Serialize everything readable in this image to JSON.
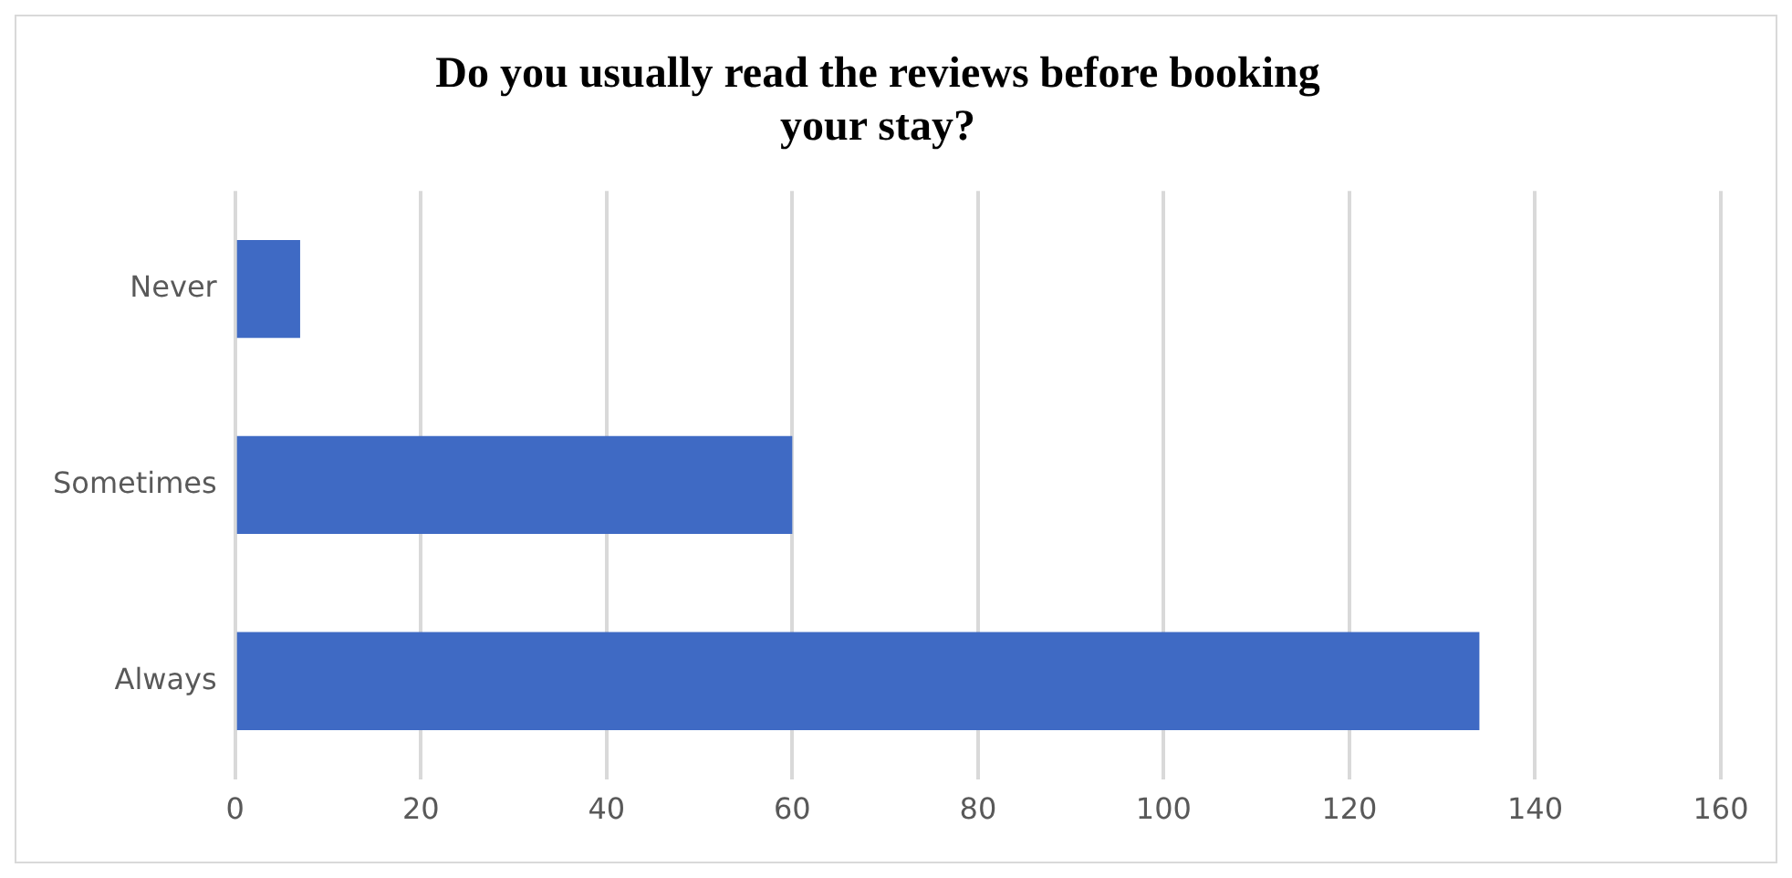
{
  "chart_data": {
    "type": "bar",
    "orientation": "horizontal",
    "title": "Do you usually read the reviews before booking your stay?",
    "categories": [
      "Never",
      "Sometimes",
      "Always"
    ],
    "values": [
      7,
      60,
      134
    ],
    "color": "#3f6ac4",
    "xlim": [
      0,
      160
    ],
    "xticks": [
      0,
      20,
      40,
      60,
      80,
      100,
      120,
      140,
      160
    ],
    "grid": "x",
    "legend": false
  }
}
